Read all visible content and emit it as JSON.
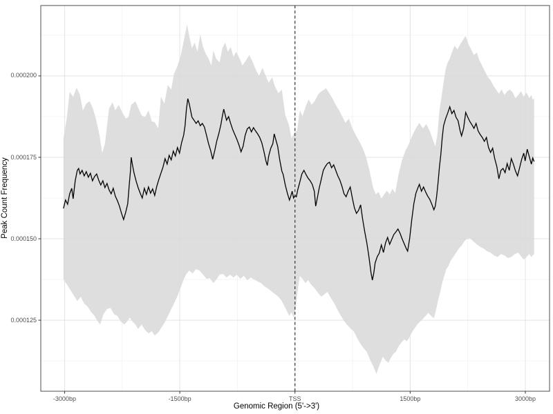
{
  "chart_data": {
    "type": "line",
    "title": "",
    "xlabel": "Genomic Region (5'->3')",
    "ylabel": "Peak Count Frequency",
    "legend": "none",
    "grid": "on",
    "value_scale": "y values are in units of 1e-4 (e.g. 1.593 = 0.0001593)",
    "x_range_bp": [
      -3310,
      3315
    ],
    "y_range": [
      1.032,
      2.216
    ],
    "x_ticks": [
      {
        "bp": -3000,
        "label": "-3000bp"
      },
      {
        "bp": -1500,
        "label": "-1500bp"
      },
      {
        "bp": 0,
        "label": "TSS"
      },
      {
        "bp": 1500,
        "label": "1500bp"
      },
      {
        "bp": 3000,
        "label": "3000bp"
      }
    ],
    "y_ticks": [
      {
        "v": 1.25,
        "label": "0.000125"
      },
      {
        "v": 1.5,
        "label": "0.000150"
      },
      {
        "v": 1.75,
        "label": "0.000175"
      },
      {
        "v": 2.0,
        "label": "0.000200"
      }
    ],
    "x_minor_bp": [
      -2250,
      -750,
      750,
      2250
    ],
    "y_minor": [
      1.125,
      1.375,
      1.625,
      1.875,
      2.125
    ],
    "vline_bp": 0,
    "colors": {
      "mean_line": "#000000",
      "band_fill": "#d9d9d9",
      "band_opacity": 0.88,
      "vline": "#333333",
      "grid_major": "#e3e3e3",
      "grid_minor": "#f1f1f1",
      "panel_border": "#4d4d4d",
      "tick_mark": "#333333",
      "tick_text": "#4d4d4d",
      "panel_background": "#ffffff"
    },
    "series": [
      {
        "name": "mean_peak_count_frequency",
        "bp": [
          -3015,
          -2988,
          -2961,
          -2934,
          -2907,
          -2889,
          -2862,
          -2835,
          -2817,
          -2799,
          -2772,
          -2745,
          -2718,
          -2691,
          -2664,
          -2637,
          -2610,
          -2583,
          -2556,
          -2529,
          -2502,
          -2475,
          -2448,
          -2421,
          -2394,
          -2367,
          -2340,
          -2313,
          -2286,
          -2259,
          -2232,
          -2205,
          -2178,
          -2160,
          -2142,
          -2133,
          -2115,
          -2097,
          -2070,
          -2043,
          -2016,
          -1989,
          -1962,
          -1935,
          -1908,
          -1881,
          -1854,
          -1827,
          -1800,
          -1773,
          -1746,
          -1719,
          -1692,
          -1665,
          -1638,
          -1611,
          -1584,
          -1557,
          -1530,
          -1503,
          -1476,
          -1449,
          -1431,
          -1413,
          -1395,
          -1377,
          -1359,
          -1341,
          -1314,
          -1287,
          -1260,
          -1233,
          -1206,
          -1179,
          -1152,
          -1125,
          -1098,
          -1071,
          -1044,
          -1017,
          -990,
          -963,
          -945,
          -927,
          -909,
          -891,
          -864,
          -837,
          -810,
          -783,
          -756,
          -729,
          -702,
          -675,
          -648,
          -621,
          -594,
          -567,
          -540,
          -513,
          -486,
          -459,
          -432,
          -405,
          -378,
          -360,
          -342,
          -315,
          -288,
          -270,
          -243,
          -225,
          -198,
          -171,
          -153,
          -126,
          -99,
          -72,
          -54,
          -36,
          -18,
          0,
          18,
          36,
          63,
          90,
          117,
          144,
          171,
          198,
          225,
          252,
          270,
          288,
          315,
          342,
          369,
          396,
          423,
          450,
          477,
          504,
          531,
          558,
          585,
          612,
          639,
          666,
          693,
          720,
          747,
          774,
          801,
          828,
          855,
          882,
          909,
          936,
          963,
          990,
          1008,
          1026,
          1044,
          1071,
          1098,
          1125,
          1152,
          1179,
          1206,
          1233,
          1260,
          1287,
          1314,
          1341,
          1368,
          1395,
          1422,
          1449,
          1467,
          1494,
          1521,
          1548,
          1575,
          1602,
          1620,
          1647,
          1674,
          1701,
          1728,
          1755,
          1782,
          1809,
          1827,
          1845,
          1863,
          1881,
          1899,
          1917,
          1935,
          1962,
          1989,
          2016,
          2043,
          2070,
          2097,
          2124,
          2151,
          2169,
          2196,
          2223,
          2250,
          2277,
          2304,
          2331,
          2358,
          2385,
          2412,
          2439,
          2466,
          2493,
          2520,
          2547,
          2574,
          2601,
          2628,
          2655,
          2682,
          2709,
          2736,
          2763,
          2790,
          2817,
          2844,
          2871,
          2898,
          2925,
          2952,
          2979,
          2997,
          3024,
          3051,
          3078,
          3096,
          3114
        ],
        "v": [
          1.593,
          1.619,
          1.606,
          1.638,
          1.655,
          1.623,
          1.678,
          1.71,
          1.716,
          1.699,
          1.71,
          1.693,
          1.706,
          1.689,
          1.701,
          1.678,
          1.691,
          1.699,
          1.68,
          1.665,
          1.678,
          1.657,
          1.67,
          1.65,
          1.638,
          1.655,
          1.631,
          1.617,
          1.6,
          1.578,
          1.559,
          1.581,
          1.608,
          1.661,
          1.71,
          1.75,
          1.725,
          1.703,
          1.678,
          1.657,
          1.64,
          1.625,
          1.655,
          1.636,
          1.659,
          1.64,
          1.653,
          1.633,
          1.661,
          1.682,
          1.701,
          1.72,
          1.746,
          1.729,
          1.756,
          1.742,
          1.769,
          1.754,
          1.78,
          1.763,
          1.795,
          1.818,
          1.847,
          1.898,
          1.93,
          1.915,
          1.894,
          1.873,
          1.864,
          1.854,
          1.862,
          1.847,
          1.854,
          1.843,
          1.818,
          1.792,
          1.771,
          1.744,
          1.771,
          1.801,
          1.824,
          1.852,
          1.877,
          1.898,
          1.881,
          1.864,
          1.875,
          1.854,
          1.835,
          1.82,
          1.805,
          1.788,
          1.767,
          1.784,
          1.818,
          1.837,
          1.843,
          1.828,
          1.841,
          1.831,
          1.822,
          1.811,
          1.795,
          1.769,
          1.739,
          1.725,
          1.754,
          1.778,
          1.792,
          1.822,
          1.799,
          1.784,
          1.742,
          1.708,
          1.697,
          1.665,
          1.64,
          1.619,
          1.631,
          1.646,
          1.625,
          1.633,
          1.629,
          1.65,
          1.674,
          1.699,
          1.71,
          1.697,
          1.686,
          1.678,
          1.667,
          1.646,
          1.6,
          1.621,
          1.655,
          1.682,
          1.71,
          1.722,
          1.731,
          1.735,
          1.718,
          1.727,
          1.71,
          1.693,
          1.68,
          1.661,
          1.638,
          1.629,
          1.646,
          1.659,
          1.625,
          1.595,
          1.578,
          1.587,
          1.604,
          1.559,
          1.521,
          1.487,
          1.445,
          1.396,
          1.373,
          1.394,
          1.426,
          1.445,
          1.456,
          1.481,
          1.458,
          1.487,
          1.504,
          1.483,
          1.498,
          1.513,
          1.521,
          1.53,
          1.517,
          1.5,
          1.485,
          1.47,
          1.462,
          1.502,
          1.559,
          1.608,
          1.64,
          1.657,
          1.667,
          1.646,
          1.659,
          1.644,
          1.631,
          1.621,
          1.606,
          1.589,
          1.6,
          1.631,
          1.672,
          1.72,
          1.758,
          1.809,
          1.847,
          1.869,
          1.886,
          1.905,
          1.884,
          1.894,
          1.873,
          1.862,
          1.831,
          1.816,
          1.839,
          1.888,
          1.873,
          1.86,
          1.85,
          1.839,
          1.854,
          1.831,
          1.82,
          1.811,
          1.799,
          1.811,
          1.78,
          1.765,
          1.778,
          1.746,
          1.722,
          1.684,
          1.71,
          1.716,
          1.703,
          1.731,
          1.71,
          1.746,
          1.729,
          1.708,
          1.693,
          1.718,
          1.744,
          1.763,
          1.739,
          1.775,
          1.752,
          1.729,
          1.748,
          1.737
        ]
      }
    ],
    "confidence_band": {
      "name": "confidence_interval_ribbon",
      "upper_bp": [
        -3015,
        -2970,
        -2934,
        -2889,
        -2844,
        -2799,
        -2763,
        -2718,
        -2673,
        -2628,
        -2592,
        -2547,
        -2511,
        -2475,
        -2421,
        -2376,
        -2340,
        -2295,
        -2250,
        -2205,
        -2169,
        -2133,
        -2079,
        -2034,
        -1998,
        -1953,
        -1908,
        -1863,
        -1827,
        -1782,
        -1746,
        -1701,
        -1656,
        -1611,
        -1575,
        -1530,
        -1485,
        -1449,
        -1422,
        -1404,
        -1377,
        -1341,
        -1305,
        -1269,
        -1233,
        -1197,
        -1161,
        -1125,
        -1089,
        -1062,
        -1026,
        -981,
        -945,
        -909,
        -873,
        -837,
        -801,
        -765,
        -720,
        -684,
        -639,
        -594,
        -549,
        -513,
        -468,
        -423,
        -387,
        -342,
        -297,
        -261,
        -216,
        -171,
        -126,
        -81,
        -45,
        -9,
        27,
        63,
        99,
        144,
        180,
        216,
        261,
        297,
        333,
        369,
        405,
        441,
        486,
        531,
        576,
        621,
        657,
        702,
        747,
        792,
        837,
        882,
        927,
        972,
        1017,
        1053,
        1089,
        1125,
        1161,
        1197,
        1233,
        1269,
        1305,
        1350,
        1395,
        1440,
        1485,
        1530,
        1575,
        1620,
        1665,
        1710,
        1755,
        1800,
        1827,
        1854,
        1881,
        1908,
        1935,
        1962,
        1989,
        2016,
        2043,
        2079,
        2115,
        2151,
        2187,
        2223,
        2259,
        2295,
        2331,
        2367,
        2403,
        2439,
        2475,
        2511,
        2547,
        2583,
        2619,
        2655,
        2691,
        2727,
        2763,
        2799,
        2835,
        2871,
        2907,
        2943,
        2979,
        3015,
        3051,
        3078,
        3096,
        3114
      ],
      "upper_v": [
        1.809,
        1.873,
        1.951,
        1.936,
        1.964,
        1.941,
        1.894,
        1.915,
        1.922,
        1.898,
        1.867,
        1.82,
        1.763,
        1.792,
        1.9,
        1.919,
        1.894,
        1.911,
        1.888,
        1.869,
        1.873,
        1.911,
        1.922,
        1.898,
        1.879,
        1.873,
        1.894,
        1.86,
        1.858,
        1.839,
        1.936,
        1.915,
        1.972,
        1.958,
        2.006,
        2.03,
        2.064,
        2.106,
        2.138,
        2.157,
        2.123,
        2.085,
        2.102,
        2.074,
        2.127,
        2.089,
        2.068,
        2.053,
        2.032,
        2.078,
        2.053,
        2.042,
        2.085,
        2.102,
        2.074,
        2.089,
        2.059,
        2.074,
        2.053,
        2.032,
        2.047,
        2.064,
        2.042,
        2.021,
        2.0,
        2.025,
        2.004,
        1.979,
        1.996,
        1.968,
        1.947,
        1.958,
        1.879,
        1.852,
        1.809,
        1.826,
        1.831,
        1.894,
        1.877,
        1.909,
        1.928,
        1.911,
        1.924,
        1.941,
        1.951,
        1.956,
        1.962,
        1.949,
        1.932,
        1.911,
        1.894,
        1.873,
        1.856,
        1.869,
        1.839,
        1.818,
        1.799,
        1.778,
        1.75,
        1.708,
        1.657,
        1.636,
        1.644,
        1.623,
        1.636,
        1.648,
        1.636,
        1.653,
        1.64,
        1.699,
        1.742,
        1.771,
        1.792,
        1.818,
        1.839,
        1.856,
        1.839,
        1.852,
        1.831,
        1.801,
        1.784,
        1.818,
        1.894,
        1.936,
        1.979,
        2.021,
        2.042,
        2.053,
        2.072,
        2.093,
        2.081,
        2.097,
        2.11,
        2.123,
        2.097,
        2.081,
        2.064,
        2.072,
        2.047,
        2.03,
        2.013,
        1.996,
        1.987,
        1.97,
        1.958,
        1.945,
        1.958,
        1.941,
        1.953,
        1.958,
        1.949,
        1.932,
        1.941,
        1.953,
        1.936,
        1.949,
        1.932,
        1.941,
        1.926,
        1.932
      ],
      "lower_bp": [
        -3015,
        -2970,
        -2925,
        -2880,
        -2835,
        -2790,
        -2745,
        -2700,
        -2655,
        -2610,
        -2574,
        -2538,
        -2493,
        -2448,
        -2403,
        -2358,
        -2313,
        -2268,
        -2223,
        -2187,
        -2151,
        -2115,
        -2079,
        -2043,
        -1998,
        -1953,
        -1908,
        -1863,
        -1827,
        -1782,
        -1746,
        -1701,
        -1665,
        -1620,
        -1575,
        -1530,
        -1485,
        -1449,
        -1413,
        -1377,
        -1332,
        -1287,
        -1242,
        -1197,
        -1152,
        -1107,
        -1062,
        -1017,
        -981,
        -936,
        -891,
        -846,
        -801,
        -756,
        -711,
        -666,
        -621,
        -576,
        -531,
        -486,
        -441,
        -396,
        -351,
        -306,
        -261,
        -216,
        -171,
        -135,
        -99,
        -72,
        -45,
        -18,
        9,
        36,
        63,
        99,
        135,
        171,
        207,
        252,
        297,
        342,
        387,
        423,
        468,
        513,
        558,
        594,
        639,
        675,
        720,
        765,
        810,
        846,
        891,
        936,
        981,
        1017,
        1044,
        1062,
        1089,
        1116,
        1143,
        1179,
        1215,
        1251,
        1287,
        1314,
        1350,
        1386,
        1422,
        1458,
        1485,
        1521,
        1557,
        1593,
        1629,
        1665,
        1701,
        1737,
        1773,
        1809,
        1836,
        1863,
        1890,
        1917,
        1944,
        1971,
        1998,
        2025,
        2061,
        2097,
        2133,
        2169,
        2205,
        2241,
        2277,
        2322,
        2367,
        2412,
        2457,
        2502,
        2547,
        2592,
        2637,
        2682,
        2727,
        2772,
        2817,
        2862,
        2907,
        2952,
        2979,
        3015,
        3051,
        3078,
        3096,
        3114
      ],
      "lower_v": [
        1.375,
        1.36,
        1.343,
        1.326,
        1.309,
        1.322,
        1.301,
        1.292,
        1.275,
        1.263,
        1.248,
        1.237,
        1.269,
        1.284,
        1.288,
        1.269,
        1.263,
        1.246,
        1.237,
        1.246,
        1.258,
        1.246,
        1.237,
        1.223,
        1.237,
        1.22,
        1.21,
        1.216,
        1.203,
        1.212,
        1.225,
        1.242,
        1.258,
        1.28,
        1.301,
        1.324,
        1.352,
        1.375,
        1.392,
        1.402,
        1.394,
        1.407,
        1.402,
        1.39,
        1.377,
        1.379,
        1.364,
        1.377,
        1.39,
        1.392,
        1.381,
        1.39,
        1.381,
        1.39,
        1.377,
        1.386,
        1.373,
        1.381,
        1.375,
        1.369,
        1.364,
        1.354,
        1.347,
        1.339,
        1.33,
        1.322,
        1.309,
        1.292,
        1.275,
        1.263,
        1.275,
        1.258,
        1.284,
        1.343,
        1.386,
        1.377,
        1.364,
        1.373,
        1.36,
        1.349,
        1.335,
        1.322,
        1.33,
        1.337,
        1.318,
        1.301,
        1.28,
        1.265,
        1.248,
        1.237,
        1.225,
        1.216,
        1.195,
        1.18,
        1.165,
        1.153,
        1.127,
        1.11,
        1.095,
        1.085,
        1.106,
        1.121,
        1.138,
        1.127,
        1.119,
        1.136,
        1.148,
        1.153,
        1.17,
        1.182,
        1.191,
        1.186,
        1.195,
        1.212,
        1.225,
        1.237,
        1.246,
        1.254,
        1.263,
        1.273,
        1.263,
        1.256,
        1.28,
        1.311,
        1.335,
        1.364,
        1.386,
        1.407,
        1.416,
        1.432,
        1.444,
        1.457,
        1.47,
        1.479,
        1.492,
        1.5,
        1.502,
        1.492,
        1.483,
        1.475,
        1.47,
        1.462,
        1.457,
        1.449,
        1.444,
        1.453,
        1.449,
        1.441,
        1.444,
        1.453,
        1.457,
        1.444,
        1.436,
        1.444,
        1.453,
        1.444,
        1.449,
        1.453
      ]
    }
  }
}
